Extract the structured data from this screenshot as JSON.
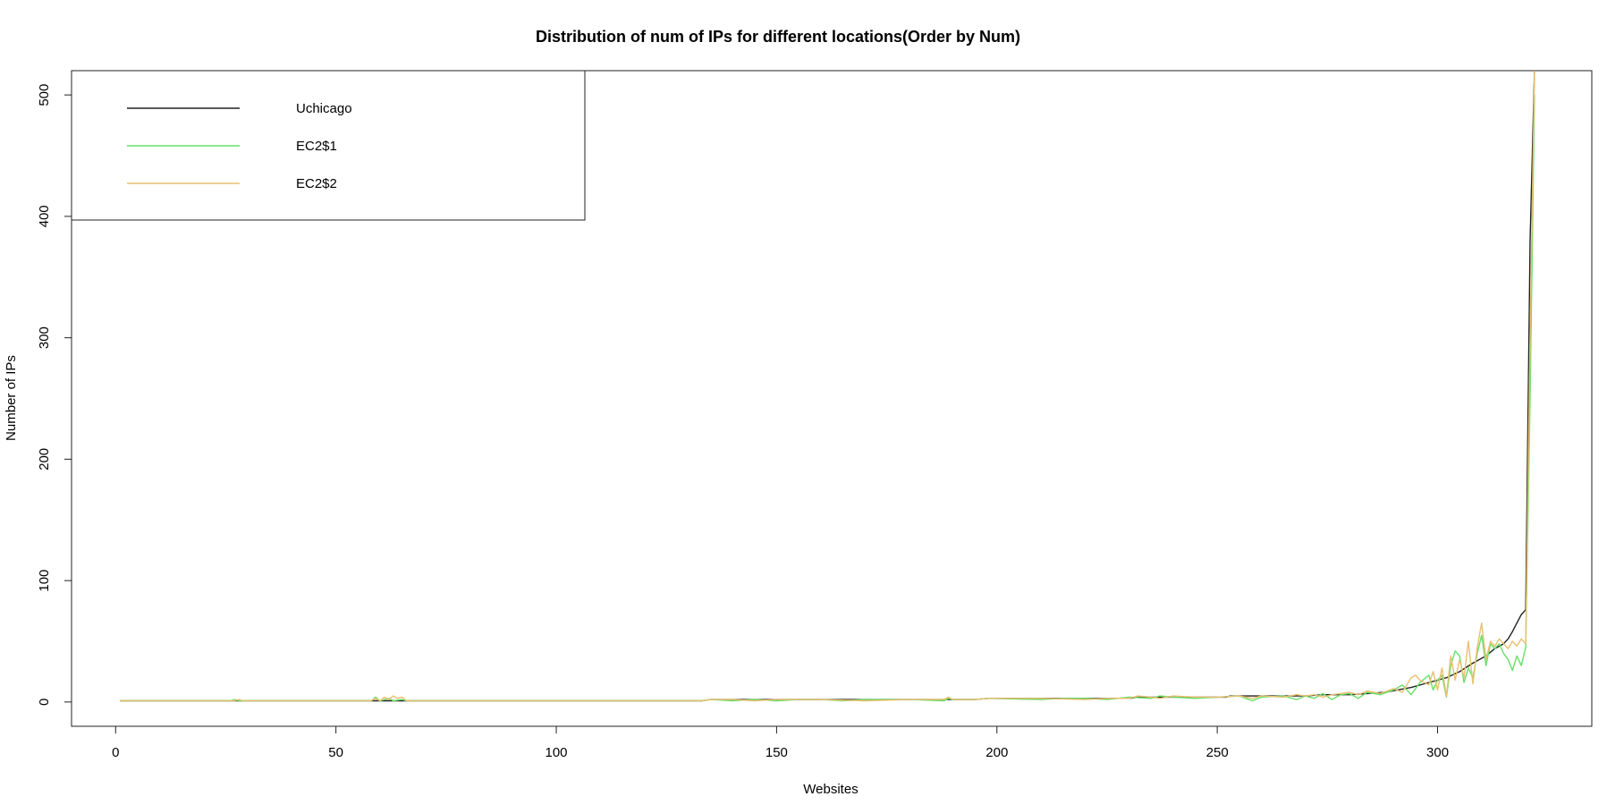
{
  "chart_data": {
    "type": "line",
    "title": "Distribution of num of IPs for different locations(Order by Num)",
    "xlabel": "Websites",
    "ylabel": "Number of IPs",
    "xlim": [
      -10,
      335
    ],
    "ylim": [
      -20,
      520
    ],
    "x_ticks": [
      0,
      50,
      100,
      150,
      200,
      250,
      300
    ],
    "y_ticks": [
      0,
      100,
      200,
      300,
      400,
      500
    ],
    "grid": false,
    "legend_position": "top-left",
    "legend": [
      {
        "name": "Uchicago",
        "color": "#222222"
      },
      {
        "name": "EC2$1",
        "color": "#66e066"
      },
      {
        "name": "EC2$2",
        "color": "#e8c070"
      }
    ],
    "series": [
      {
        "name": "Uchicago",
        "color": "#222222",
        "points": [
          [
            1,
            1
          ],
          [
            27,
            1
          ],
          [
            28,
            1
          ],
          [
            58,
            1
          ],
          [
            59,
            1
          ],
          [
            66,
            1
          ],
          [
            100,
            1
          ],
          [
            133,
            1
          ],
          [
            135,
            2
          ],
          [
            150,
            2
          ],
          [
            160,
            2
          ],
          [
            175,
            2
          ],
          [
            190,
            2
          ],
          [
            195,
            2
          ],
          [
            198,
            3
          ],
          [
            210,
            3
          ],
          [
            220,
            3
          ],
          [
            230,
            3
          ],
          [
            232,
            4
          ],
          [
            240,
            4
          ],
          [
            252,
            4
          ],
          [
            253,
            5
          ],
          [
            260,
            5
          ],
          [
            270,
            5
          ],
          [
            274,
            6
          ],
          [
            280,
            6
          ],
          [
            284,
            7
          ],
          [
            288,
            8
          ],
          [
            291,
            10
          ],
          [
            294,
            12
          ],
          [
            297,
            15
          ],
          [
            300,
            18
          ],
          [
            302,
            20
          ],
          [
            305,
            25
          ],
          [
            308,
            32
          ],
          [
            311,
            38
          ],
          [
            313,
            44
          ],
          [
            315,
            48
          ],
          [
            316,
            52
          ],
          [
            317,
            58
          ],
          [
            318,
            65
          ],
          [
            319,
            72
          ],
          [
            320,
            76
          ],
          [
            321,
            380
          ],
          [
            322,
            520
          ]
        ]
      },
      {
        "name": "EC2$1",
        "color": "#66e066",
        "points": [
          [
            1,
            1
          ],
          [
            26,
            1
          ],
          [
            27,
            2
          ],
          [
            28,
            1
          ],
          [
            58,
            1
          ],
          [
            59,
            4
          ],
          [
            60,
            1
          ],
          [
            62,
            3
          ],
          [
            63,
            1
          ],
          [
            65,
            2
          ],
          [
            66,
            1
          ],
          [
            100,
            1
          ],
          [
            133,
            1
          ],
          [
            135,
            2
          ],
          [
            140,
            1
          ],
          [
            145,
            2
          ],
          [
            150,
            1
          ],
          [
            155,
            2
          ],
          [
            160,
            2
          ],
          [
            165,
            1
          ],
          [
            170,
            2
          ],
          [
            180,
            2
          ],
          [
            188,
            1
          ],
          [
            189,
            3
          ],
          [
            190,
            2
          ],
          [
            195,
            2
          ],
          [
            198,
            3
          ],
          [
            210,
            2
          ],
          [
            215,
            3
          ],
          [
            220,
            3
          ],
          [
            225,
            2
          ],
          [
            230,
            4
          ],
          [
            235,
            3
          ],
          [
            237,
            5
          ],
          [
            240,
            4
          ],
          [
            245,
            3
          ],
          [
            250,
            4
          ],
          [
            255,
            5
          ],
          [
            258,
            1
          ],
          [
            260,
            4
          ],
          [
            265,
            5
          ],
          [
            268,
            2
          ],
          [
            270,
            5
          ],
          [
            272,
            3
          ],
          [
            274,
            7
          ],
          [
            276,
            2
          ],
          [
            278,
            6
          ],
          [
            280,
            7
          ],
          [
            282,
            3
          ],
          [
            284,
            8
          ],
          [
            287,
            6
          ],
          [
            290,
            10
          ],
          [
            292,
            14
          ],
          [
            294,
            6
          ],
          [
            296,
            16
          ],
          [
            298,
            22
          ],
          [
            299,
            10
          ],
          [
            300,
            18
          ],
          [
            301,
            22
          ],
          [
            302,
            4
          ],
          [
            303,
            30
          ],
          [
            304,
            42
          ],
          [
            305,
            38
          ],
          [
            306,
            16
          ],
          [
            307,
            28
          ],
          [
            308,
            20
          ],
          [
            309,
            40
          ],
          [
            310,
            55
          ],
          [
            311,
            30
          ],
          [
            312,
            48
          ],
          [
            313,
            44
          ],
          [
            314,
            48
          ],
          [
            315,
            40
          ],
          [
            316,
            35
          ],
          [
            317,
            26
          ],
          [
            318,
            38
          ],
          [
            319,
            30
          ],
          [
            320,
            45
          ],
          [
            321,
            250
          ],
          [
            322,
            500
          ]
        ]
      },
      {
        "name": "EC2$2",
        "color": "#e8c070",
        "points": [
          [
            1,
            1
          ],
          [
            27,
            1
          ],
          [
            28,
            2
          ],
          [
            29,
            1
          ],
          [
            58,
            1
          ],
          [
            59,
            3
          ],
          [
            60,
            1
          ],
          [
            61,
            4
          ],
          [
            62,
            2
          ],
          [
            63,
            5
          ],
          [
            64,
            3
          ],
          [
            65,
            4
          ],
          [
            66,
            1
          ],
          [
            100,
            1
          ],
          [
            133,
            1
          ],
          [
            135,
            2
          ],
          [
            140,
            2
          ],
          [
            145,
            1
          ],
          [
            150,
            2
          ],
          [
            160,
            2
          ],
          [
            170,
            1
          ],
          [
            180,
            2
          ],
          [
            188,
            2
          ],
          [
            189,
            4
          ],
          [
            190,
            2
          ],
          [
            195,
            2
          ],
          [
            198,
            3
          ],
          [
            210,
            3
          ],
          [
            220,
            2
          ],
          [
            225,
            3
          ],
          [
            230,
            3
          ],
          [
            232,
            5
          ],
          [
            235,
            4
          ],
          [
            237,
            3
          ],
          [
            240,
            5
          ],
          [
            245,
            4
          ],
          [
            250,
            4
          ],
          [
            255,
            5
          ],
          [
            258,
            3
          ],
          [
            260,
            5
          ],
          [
            265,
            4
          ],
          [
            268,
            6
          ],
          [
            270,
            5
          ],
          [
            272,
            6
          ],
          [
            274,
            4
          ],
          [
            276,
            6
          ],
          [
            278,
            7
          ],
          [
            280,
            8
          ],
          [
            282,
            6
          ],
          [
            284,
            9
          ],
          [
            287,
            7
          ],
          [
            290,
            11
          ],
          [
            292,
            8
          ],
          [
            294,
            20
          ],
          [
            295,
            22
          ],
          [
            296,
            18
          ],
          [
            298,
            14
          ],
          [
            299,
            25
          ],
          [
            300,
            10
          ],
          [
            301,
            28
          ],
          [
            302,
            5
          ],
          [
            303,
            38
          ],
          [
            304,
            18
          ],
          [
            305,
            35
          ],
          [
            306,
            20
          ],
          [
            307,
            50
          ],
          [
            308,
            15
          ],
          [
            309,
            45
          ],
          [
            310,
            65
          ],
          [
            311,
            35
          ],
          [
            312,
            50
          ],
          [
            313,
            46
          ],
          [
            314,
            52
          ],
          [
            315,
            48
          ],
          [
            316,
            44
          ],
          [
            317,
            50
          ],
          [
            318,
            46
          ],
          [
            319,
            52
          ],
          [
            320,
            48
          ],
          [
            321,
            300
          ],
          [
            322,
            520
          ]
        ]
      }
    ]
  }
}
